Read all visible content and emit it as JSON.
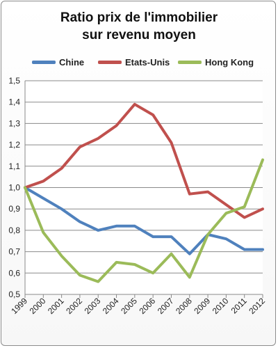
{
  "chart_data": {
    "type": "line",
    "title_line1": "Ratio prix de l'immobilier",
    "title_line2": "sur revenu moyen",
    "xlabel": "",
    "ylabel": "",
    "x": [
      "1999",
      "2000",
      "2001",
      "2002",
      "2003",
      "2004",
      "2005",
      "2006",
      "2007",
      "2008",
      "2009",
      "2010",
      "2011",
      "2012"
    ],
    "ylim": [
      0.5,
      1.5
    ],
    "yticks": [
      "0,5",
      "0,6",
      "0,7",
      "0,8",
      "0,9",
      "1,0",
      "1,1",
      "1,2",
      "1,3",
      "1,4",
      "1,5"
    ],
    "grid": true,
    "legend_placement": "top",
    "series": [
      {
        "name": "Chine",
        "color": "#4f81bd",
        "values": [
          1.0,
          0.95,
          0.9,
          0.84,
          0.8,
          0.82,
          0.82,
          0.77,
          0.77,
          0.69,
          0.78,
          0.76,
          0.71,
          0.71
        ]
      },
      {
        "name": "Etats-Unis",
        "color": "#c0504d",
        "values": [
          1.0,
          1.03,
          1.09,
          1.19,
          1.23,
          1.29,
          1.39,
          1.34,
          1.21,
          0.97,
          0.98,
          0.92,
          0.86,
          0.9
        ]
      },
      {
        "name": "Hong Kong",
        "color": "#9bbb59",
        "values": [
          1.0,
          0.79,
          0.68,
          0.59,
          0.56,
          0.65,
          0.64,
          0.6,
          0.69,
          0.58,
          0.78,
          0.88,
          0.91,
          1.13
        ]
      }
    ]
  }
}
